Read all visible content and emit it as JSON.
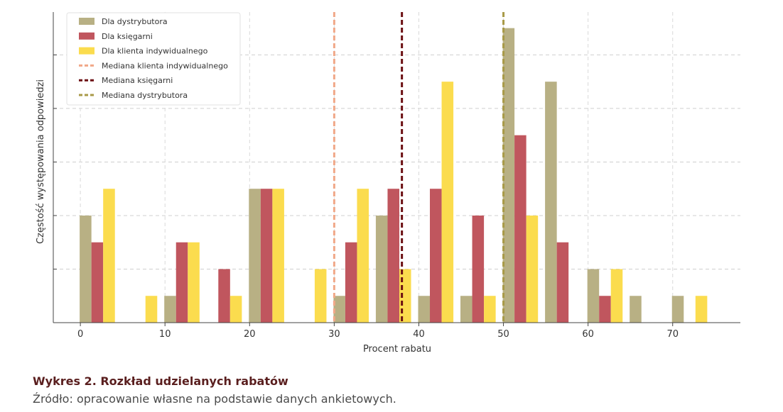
{
  "chart_data": {
    "type": "bar",
    "xlabel": "Procent rabatu",
    "ylabel": "Częstość występowania odpowiedzi",
    "xlim": [
      -3.2,
      78
    ],
    "ylim": [
      0,
      5.8
    ],
    "x_ticks": [
      0,
      10,
      20,
      30,
      40,
      50,
      60,
      70
    ],
    "bin_centers": [
      2,
      7,
      12,
      17,
      22,
      27,
      32,
      37,
      42,
      47,
      52,
      57,
      62,
      67,
      72
    ],
    "series": [
      {
        "name": "Dla dystrybutora",
        "color": "#b8b084",
        "values": [
          2,
          0,
          0.5,
          0,
          2.5,
          0,
          0.5,
          2,
          0.5,
          0.5,
          5.5,
          4.5,
          1,
          0.5,
          0.5
        ]
      },
      {
        "name": "Dla księgarni",
        "color": "#c0565e",
        "values": [
          1.5,
          0,
          1.5,
          1,
          2.5,
          0,
          1.5,
          2.5,
          2.5,
          2,
          3.5,
          1.5,
          0.5,
          0,
          0
        ]
      },
      {
        "name": "Dla klienta indywidualnego",
        "color": "#fbdc4e",
        "values": [
          2.5,
          0.5,
          1.5,
          0.5,
          2.5,
          1,
          2.5,
          1,
          4.5,
          0.5,
          2,
          0,
          1,
          0,
          0.5
        ]
      }
    ],
    "medians": [
      {
        "name": "Mediana klienta indywidualnego",
        "value": 30,
        "color": "#f1a888"
      },
      {
        "name": "Mediana księgarni",
        "value": 38,
        "color": "#6b0f12"
      },
      {
        "name": "Mediana dystrybutora",
        "value": 50,
        "color": "#a89a48"
      }
    ],
    "grid": true,
    "legend_position": "top-left"
  },
  "caption": {
    "title": "Wykres 2. Rozkład udzielanych rabatów",
    "source": "Źródło: opracowanie własne na podstawie danych ankietowych."
  }
}
